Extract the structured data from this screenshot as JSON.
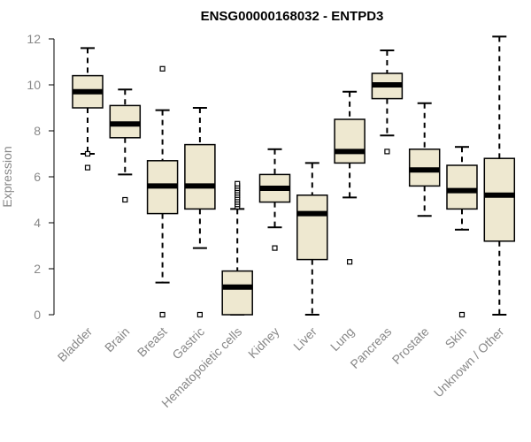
{
  "chart_data": {
    "type": "box",
    "title": "ENSG00000168032 - ENTPD3",
    "ylabel": "Expression",
    "xlabel": "",
    "ylim": [
      0,
      12
    ],
    "yticks": [
      "0",
      "2",
      "4",
      "6",
      "8",
      "10",
      "12"
    ],
    "colors": {
      "box_fill": "#EEE8D0",
      "stroke": "#000000",
      "tick_text": "#888888"
    },
    "categories": [
      "Bladder",
      "Brain",
      "Breast",
      "Gastric",
      "Hematopoietic cells",
      "Kidney",
      "Liver",
      "Lung",
      "Pancreas",
      "Prostate",
      "Skin",
      "Unknown / Other"
    ],
    "boxes": [
      {
        "whisker_low": 7.0,
        "q1": 9.0,
        "median": 9.7,
        "q3": 10.4,
        "whisker_high": 11.6,
        "outliers": [
          6.4,
          7.0
        ]
      },
      {
        "whisker_low": 6.1,
        "q1": 7.7,
        "median": 8.3,
        "q3": 9.1,
        "whisker_high": 9.8,
        "outliers": [
          5.0
        ]
      },
      {
        "whisker_low": 1.4,
        "q1": 4.4,
        "median": 5.6,
        "q3": 6.7,
        "whisker_high": 8.9,
        "outliers": [
          0.0,
          10.7
        ]
      },
      {
        "whisker_low": 2.9,
        "q1": 4.6,
        "median": 5.6,
        "q3": 7.4,
        "whisker_high": 9.0,
        "outliers": [
          0.0
        ]
      },
      {
        "whisker_low": 0.0,
        "q1": 0.0,
        "median": 1.2,
        "q3": 1.9,
        "whisker_high": 4.6,
        "outliers": [
          4.7,
          4.8,
          4.9,
          5.0,
          5.1,
          5.2,
          5.3,
          5.4,
          5.5,
          5.6,
          5.7
        ]
      },
      {
        "whisker_low": 3.8,
        "q1": 4.9,
        "median": 5.5,
        "q3": 6.1,
        "whisker_high": 7.2,
        "outliers": [
          2.9
        ]
      },
      {
        "whisker_low": 0.0,
        "q1": 2.4,
        "median": 4.4,
        "q3": 5.2,
        "whisker_high": 6.6,
        "outliers": []
      },
      {
        "whisker_low": 5.1,
        "q1": 6.6,
        "median": 7.1,
        "q3": 8.5,
        "whisker_high": 9.7,
        "outliers": [
          2.3
        ]
      },
      {
        "whisker_low": 7.8,
        "q1": 9.4,
        "median": 10.0,
        "q3": 10.5,
        "whisker_high": 11.5,
        "outliers": [
          7.1
        ]
      },
      {
        "whisker_low": 4.3,
        "q1": 5.6,
        "median": 6.3,
        "q3": 7.2,
        "whisker_high": 9.2,
        "outliers": []
      },
      {
        "whisker_low": 3.7,
        "q1": 4.6,
        "median": 5.4,
        "q3": 6.5,
        "whisker_high": 7.3,
        "outliers": [
          0.0
        ]
      },
      {
        "whisker_low": 0.0,
        "q1": 3.2,
        "median": 5.2,
        "q3": 6.8,
        "whisker_high": 12.1,
        "outliers": []
      }
    ]
  }
}
